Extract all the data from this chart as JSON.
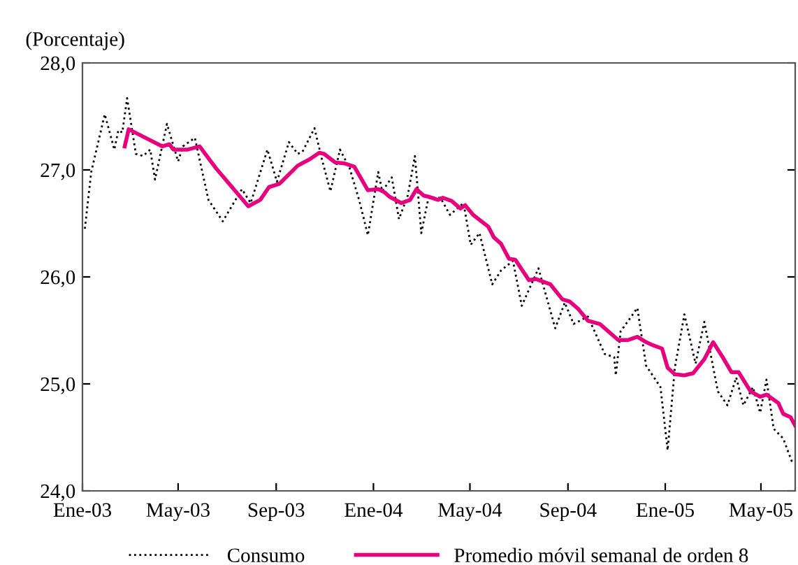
{
  "chart_data": {
    "type": "line",
    "ylabel": "(Porcentaje)",
    "xlim": [
      "2003-01-01",
      "2005-06-13"
    ],
    "ylim": [
      24.0,
      28.0
    ],
    "xticks": [
      {
        "value": "2003-01-01",
        "label": "Ene-03"
      },
      {
        "value": "2003-05-01",
        "label": "May-03"
      },
      {
        "value": "2003-09-01",
        "label": "Sep-03"
      },
      {
        "value": "2004-01-01",
        "label": "Ene-04"
      },
      {
        "value": "2004-05-01",
        "label": "May-04"
      },
      {
        "value": "2004-09-01",
        "label": "Sep-04"
      },
      {
        "value": "2005-01-01",
        "label": "Ene-05"
      },
      {
        "value": "2005-05-01",
        "label": "May-05"
      }
    ],
    "yticks": [
      {
        "value": 24,
        "label": "24,0"
      },
      {
        "value": 25,
        "label": "25,0"
      },
      {
        "value": 26,
        "label": "26,0"
      },
      {
        "value": 27,
        "label": "27,0"
      },
      {
        "value": 28,
        "label": "28,0"
      }
    ],
    "grid": false,
    "legend": "bottom",
    "series": [
      {
        "name": "Consumo",
        "color": "#000000",
        "line_style": "dotted",
        "x": [
          "2003-01-04",
          "2003-01-12",
          "2003-01-29",
          "2003-02-10",
          "2003-02-15",
          "2003-02-20",
          "2003-02-26",
          "2003-03-09",
          "2003-03-18",
          "2003-03-27",
          "2003-04-02",
          "2003-04-17",
          "2003-05-01",
          "2003-05-07",
          "2003-05-22",
          "2003-06-08",
          "2003-06-26",
          "2003-07-20",
          "2003-07-31",
          "2003-08-21",
          "2003-09-02",
          "2003-09-17",
          "2003-09-28",
          "2003-10-04",
          "2003-10-19",
          "2003-10-28",
          "2003-11-08",
          "2003-11-20",
          "2003-12-02",
          "2003-12-14",
          "2003-12-25",
          "2004-01-07",
          "2004-01-12",
          "2004-01-24",
          "2004-02-02",
          "2004-02-13",
          "2004-02-22",
          "2004-03-01",
          "2004-03-10",
          "2004-03-25",
          "2004-04-06",
          "2004-04-23",
          "2004-05-02",
          "2004-05-13",
          "2004-05-29",
          "2004-06-09",
          "2004-06-24",
          "2004-07-05",
          "2004-07-26",
          "2004-08-16",
          "2004-08-28",
          "2004-09-08",
          "2004-09-26",
          "2004-10-17",
          "2004-10-29",
          "2004-10-31",
          "2004-11-06",
          "2004-11-27",
          "2004-12-08",
          "2004-12-26",
          "2005-01-04",
          "2005-01-13",
          "2005-01-25",
          "2005-02-08",
          "2005-02-19",
          "2005-03-08",
          "2005-03-20",
          "2005-03-31",
          "2005-04-09",
          "2005-04-21",
          "2005-04-30",
          "2005-05-08",
          "2005-05-17",
          "2005-05-29",
          "2005-06-10"
        ],
        "values": [
          26.45,
          26.98,
          27.52,
          27.19,
          27.37,
          27.35,
          27.67,
          27.15,
          27.13,
          27.19,
          26.91,
          27.43,
          27.08,
          27.22,
          27.3,
          26.72,
          26.52,
          26.82,
          26.69,
          27.19,
          26.89,
          27.26,
          27.15,
          27.17,
          27.39,
          27.11,
          26.8,
          27.19,
          27.02,
          26.72,
          26.39,
          26.98,
          26.8,
          26.93,
          26.54,
          26.76,
          27.13,
          26.41,
          26.74,
          26.74,
          26.58,
          26.69,
          26.3,
          26.41,
          25.93,
          26.06,
          26.15,
          25.73,
          26.08,
          25.52,
          25.76,
          25.56,
          25.63,
          25.28,
          25.25,
          25.08,
          25.49,
          25.71,
          25.17,
          24.97,
          24.38,
          25.15,
          25.65,
          25.19,
          25.58,
          24.93,
          24.8,
          25.06,
          24.8,
          24.97,
          24.73,
          25.04,
          24.58,
          24.49,
          24.25
        ]
      },
      {
        "name": "Promedio móvil semanal de orden 8",
        "color": "#e6007e",
        "line_style": "solid",
        "x": [
          "2003-02-23",
          "2003-02-28",
          "2003-04-11",
          "2003-04-20",
          "2003-04-25",
          "2003-05-13",
          "2003-05-28",
          "2003-06-17",
          "2003-07-28",
          "2003-08-12",
          "2003-08-23",
          "2003-09-05",
          "2003-09-28",
          "2003-10-13",
          "2003-10-25",
          "2003-10-31",
          "2003-11-14",
          "2003-11-26",
          "2003-12-08",
          "2003-12-25",
          "2004-01-07",
          "2004-01-15",
          "2004-01-21",
          "2004-02-05",
          "2004-02-16",
          "2004-02-24",
          "2004-03-04",
          "2004-03-10",
          "2004-03-22",
          "2004-03-28",
          "2004-04-08",
          "2004-04-19",
          "2004-04-25",
          "2004-05-05",
          "2004-05-24",
          "2004-05-31",
          "2004-06-09",
          "2004-06-19",
          "2004-06-27",
          "2004-07-14",
          "2004-07-23",
          "2004-08-10",
          "2004-08-25",
          "2004-09-03",
          "2004-09-14",
          "2004-09-26",
          "2004-10-11",
          "2004-11-03",
          "2004-11-15",
          "2004-11-27",
          "2004-12-08",
          "2004-12-17",
          "2004-12-28",
          "2005-01-04",
          "2005-01-13",
          "2005-01-25",
          "2005-02-05",
          "2005-02-19",
          "2005-03-02",
          "2005-03-14",
          "2005-03-25",
          "2005-04-03",
          "2005-04-18",
          "2005-04-30",
          "2005-05-08",
          "2005-05-23",
          "2005-05-29",
          "2005-06-07",
          "2005-06-13"
        ],
        "values": [
          27.22,
          27.38,
          27.22,
          27.24,
          27.19,
          27.19,
          27.22,
          27.02,
          26.66,
          26.72,
          26.84,
          26.87,
          27.04,
          27.1,
          27.16,
          27.15,
          27.07,
          27.06,
          27.03,
          26.81,
          26.82,
          26.79,
          26.75,
          26.69,
          26.72,
          26.82,
          26.76,
          26.75,
          26.72,
          26.74,
          26.71,
          26.64,
          26.67,
          26.58,
          26.47,
          26.37,
          26.31,
          26.17,
          26.16,
          25.97,
          25.98,
          25.93,
          25.79,
          25.77,
          25.7,
          25.59,
          25.56,
          25.41,
          25.41,
          25.44,
          25.39,
          25.36,
          25.33,
          25.15,
          25.09,
          25.08,
          25.1,
          25.23,
          25.39,
          25.25,
          25.11,
          25.11,
          24.93,
          24.88,
          24.9,
          24.82,
          24.72,
          24.69,
          24.61
        ]
      }
    ]
  }
}
